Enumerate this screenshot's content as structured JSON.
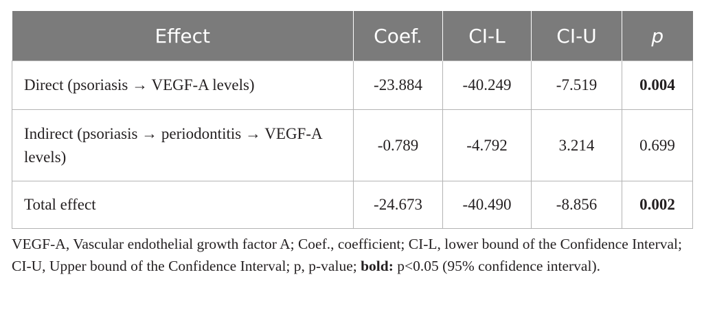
{
  "table": {
    "headers": [
      "Effect",
      "Coef.",
      "CI-L",
      "CI-U",
      "p"
    ],
    "rows": [
      {
        "effect": "Direct (psoriasis → VEGF-A levels)",
        "coef": "-23.884",
        "ci_l": "-40.249",
        "ci_u": "-7.519",
        "p": "0.004",
        "p_bold": true
      },
      {
        "effect": "Indirect (psoriasis → periodontitis → VEGF-A levels)",
        "coef": "-0.789",
        "ci_l": "-4.792",
        "ci_u": "3.214",
        "p": "0.699",
        "p_bold": false
      },
      {
        "effect": "Total effect",
        "coef": "-24.673",
        "ci_l": "-40.490",
        "ci_u": "-8.856",
        "p": "0.002",
        "p_bold": true
      }
    ]
  },
  "footnote": {
    "text_before_bold": "VEGF-A, Vascular endothelial growth factor A; Coef., coefficient; CI-L, lower bound of the Confidence Interval; CI-U, Upper bound of the Confidence Interval; p, p-value; ",
    "bold_text": "bold:",
    "text_after_bold": " p<0.05 (95% confidence interval)."
  },
  "colors": {
    "header_bg": "#7b7b7b",
    "header_text": "#ffffff",
    "border": "#b3b3b3",
    "text": "#231f20"
  }
}
